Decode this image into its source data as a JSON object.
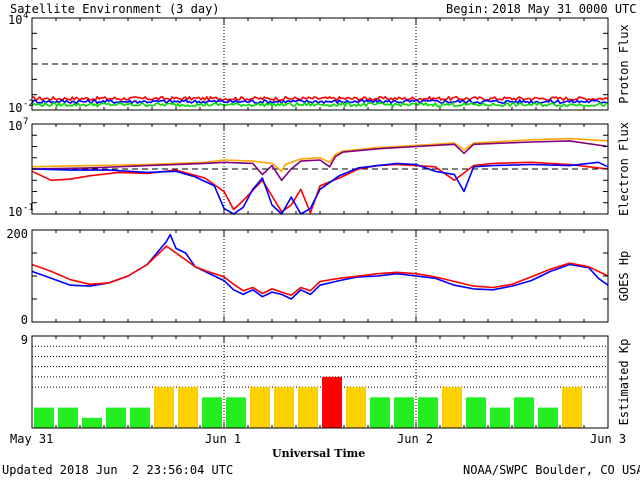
{
  "header": {
    "title": "Satellite Environment (3 day)",
    "begin_label": "Begin:",
    "begin_value": "2018 May 31 0000 UTC"
  },
  "footer": {
    "updated": "Updated 2018 Jun  2 23:56:04 UTC",
    "source": "NOAA/SWPC Boulder, CO USA",
    "xlabel": "Universal Time"
  },
  "x_axis": {
    "range": [
      0,
      3
    ],
    "ticks": [
      {
        "value": 0,
        "label": "May 31"
      },
      {
        "value": 1,
        "label": "Jun 1"
      },
      {
        "value": 2,
        "label": "Jun 2"
      },
      {
        "value": 3,
        "label": "Jun 3"
      }
    ]
  },
  "chart_data": [
    {
      "name": "proton",
      "type": "line",
      "ylabel": "Proton Flux",
      "yscale": "log",
      "ylim_exp": [
        -2,
        4
      ],
      "tick_base": "10",
      "tick_exps": [
        "4",
        "-2"
      ],
      "threshold_exp": 1,
      "series": [
        {
          "color": "#ff0000",
          "level_exp": -1.25,
          "noise": 0.12
        },
        {
          "color": "#0000ff",
          "level_exp": -1.45,
          "noise": 0.12
        },
        {
          "color": "#00dd00",
          "level_exp": -1.65,
          "noise": 0.12
        }
      ]
    },
    {
      "name": "electron",
      "type": "line",
      "ylabel": "Electron Flux",
      "yscale": "log",
      "ylim_exp": [
        -1,
        7
      ],
      "tick_base": "10",
      "tick_exps": [
        "7",
        "-1"
      ],
      "threshold_exp": 3,
      "series": [
        {
          "color": "#ffa500",
          "points": [
            [
              0,
              3.2
            ],
            [
              0.3,
              3.3
            ],
            [
              0.6,
              3.4
            ],
            [
              0.9,
              3.6
            ],
            [
              1.0,
              3.8
            ],
            [
              1.15,
              3.7
            ],
            [
              1.25,
              3.5
            ],
            [
              1.3,
              2.8
            ],
            [
              1.32,
              3.4
            ],
            [
              1.4,
              3.9
            ],
            [
              1.5,
              4.0
            ],
            [
              1.55,
              3.6
            ],
            [
              1.58,
              4.3
            ],
            [
              1.62,
              4.6
            ],
            [
              1.8,
              4.9
            ],
            [
              2.0,
              5.1
            ],
            [
              2.2,
              5.3
            ],
            [
              2.25,
              4.7
            ],
            [
              2.3,
              5.3
            ],
            [
              2.6,
              5.6
            ],
            [
              2.8,
              5.7
            ],
            [
              3.0,
              5.5
            ]
          ]
        },
        {
          "color": "#800080",
          "points": [
            [
              0,
              3.0
            ],
            [
              0.3,
              3.1
            ],
            [
              0.6,
              3.3
            ],
            [
              0.9,
              3.5
            ],
            [
              1.0,
              3.6
            ],
            [
              1.15,
              3.5
            ],
            [
              1.2,
              2.5
            ],
            [
              1.25,
              3.3
            ],
            [
              1.3,
              2.0
            ],
            [
              1.35,
              3.0
            ],
            [
              1.4,
              3.7
            ],
            [
              1.5,
              3.8
            ],
            [
              1.55,
              3.2
            ],
            [
              1.58,
              4.1
            ],
            [
              1.62,
              4.5
            ],
            [
              1.8,
              4.8
            ],
            [
              2.0,
              5.0
            ],
            [
              2.2,
              5.2
            ],
            [
              2.25,
              4.4
            ],
            [
              2.3,
              5.2
            ],
            [
              2.6,
              5.4
            ],
            [
              2.8,
              5.5
            ],
            [
              3.0,
              5.0
            ]
          ]
        },
        {
          "color": "#ff0000",
          "points": [
            [
              0,
              2.8
            ],
            [
              0.1,
              2.0
            ],
            [
              0.2,
              2.1
            ],
            [
              0.3,
              2.4
            ],
            [
              0.45,
              2.7
            ],
            [
              0.6,
              2.6
            ],
            [
              0.75,
              2.9
            ],
            [
              0.9,
              2.2
            ],
            [
              1.0,
              1.0
            ],
            [
              1.05,
              -0.6
            ],
            [
              1.1,
              0.2
            ],
            [
              1.2,
              2.0
            ],
            [
              1.25,
              0.6
            ],
            [
              1.3,
              -0.8
            ],
            [
              1.35,
              -0.2
            ],
            [
              1.4,
              1.2
            ],
            [
              1.45,
              -0.9
            ],
            [
              1.5,
              1.5
            ],
            [
              1.6,
              2.2
            ],
            [
              1.7,
              3.0
            ],
            [
              1.8,
              3.3
            ],
            [
              1.9,
              3.4
            ],
            [
              2.0,
              3.3
            ],
            [
              2.1,
              3.2
            ],
            [
              2.2,
              2.0
            ],
            [
              2.3,
              3.3
            ],
            [
              2.4,
              3.5
            ],
            [
              2.6,
              3.6
            ],
            [
              2.8,
              3.4
            ],
            [
              2.9,
              3.2
            ],
            [
              3.0,
              3.0
            ]
          ]
        },
        {
          "color": "#0000ff",
          "points": [
            [
              0,
              3.0
            ],
            [
              0.2,
              2.9
            ],
            [
              0.4,
              2.9
            ],
            [
              0.6,
              2.7
            ],
            [
              0.75,
              2.8
            ],
            [
              0.85,
              2.3
            ],
            [
              0.95,
              1.5
            ],
            [
              1.0,
              -0.5
            ],
            [
              1.05,
              -1.0
            ],
            [
              1.1,
              -0.4
            ],
            [
              1.15,
              1.2
            ],
            [
              1.2,
              2.2
            ],
            [
              1.25,
              -0.2
            ],
            [
              1.3,
              -1.0
            ],
            [
              1.35,
              0.5
            ],
            [
              1.4,
              -1.0
            ],
            [
              1.45,
              -0.5
            ],
            [
              1.5,
              1.2
            ],
            [
              1.6,
              2.4
            ],
            [
              1.7,
              3.1
            ],
            [
              1.8,
              3.3
            ],
            [
              1.9,
              3.5
            ],
            [
              2.0,
              3.4
            ],
            [
              2.1,
              2.8
            ],
            [
              2.2,
              2.5
            ],
            [
              2.25,
              1.0
            ],
            [
              2.3,
              3.2
            ],
            [
              2.4,
              3.3
            ],
            [
              2.6,
              3.4
            ],
            [
              2.8,
              3.3
            ],
            [
              2.95,
              3.6
            ],
            [
              3.0,
              3.2
            ]
          ]
        }
      ]
    },
    {
      "name": "goes_hp",
      "type": "line",
      "ylabel": "GOES Hp",
      "ylim": [
        0,
        200
      ],
      "ticks": [
        {
          "value": 200,
          "label": "200"
        },
        {
          "value": 0,
          "label": "0"
        }
      ],
      "series": [
        {
          "color": "#0000ff",
          "points": [
            [
              0,
              110
            ],
            [
              0.1,
              95
            ],
            [
              0.2,
              80
            ],
            [
              0.3,
              78
            ],
            [
              0.4,
              85
            ],
            [
              0.5,
              100
            ],
            [
              0.6,
              125
            ],
            [
              0.65,
              150
            ],
            [
              0.7,
              175
            ],
            [
              0.72,
              190
            ],
            [
              0.75,
              160
            ],
            [
              0.8,
              150
            ],
            [
              0.85,
              120
            ],
            [
              0.9,
              110
            ],
            [
              1.0,
              90
            ],
            [
              1.05,
              70
            ],
            [
              1.1,
              60
            ],
            [
              1.15,
              70
            ],
            [
              1.2,
              55
            ],
            [
              1.25,
              65
            ],
            [
              1.3,
              60
            ],
            [
              1.35,
              50
            ],
            [
              1.4,
              70
            ],
            [
              1.45,
              60
            ],
            [
              1.5,
              80
            ],
            [
              1.6,
              90
            ],
            [
              1.7,
              98
            ],
            [
              1.8,
              100
            ],
            [
              1.9,
              105
            ],
            [
              2.0,
              100
            ],
            [
              2.1,
              95
            ],
            [
              2.2,
              80
            ],
            [
              2.3,
              72
            ],
            [
              2.4,
              70
            ],
            [
              2.5,
              78
            ],
            [
              2.6,
              90
            ],
            [
              2.7,
              110
            ],
            [
              2.8,
              125
            ],
            [
              2.9,
              118
            ],
            [
              2.95,
              95
            ],
            [
              3.0,
              80
            ]
          ]
        },
        {
          "color": "#ff0000",
          "points": [
            [
              0,
              125
            ],
            [
              0.1,
              110
            ],
            [
              0.2,
              92
            ],
            [
              0.3,
              82
            ],
            [
              0.4,
              85
            ],
            [
              0.5,
              100
            ],
            [
              0.6,
              125
            ],
            [
              0.65,
              145
            ],
            [
              0.7,
              165
            ],
            [
              0.75,
              150
            ],
            [
              0.8,
              135
            ],
            [
              0.85,
              120
            ],
            [
              0.9,
              112
            ],
            [
              1.0,
              98
            ],
            [
              1.05,
              82
            ],
            [
              1.1,
              68
            ],
            [
              1.15,
              75
            ],
            [
              1.2,
              62
            ],
            [
              1.25,
              72
            ],
            [
              1.3,
              65
            ],
            [
              1.35,
              58
            ],
            [
              1.4,
              75
            ],
            [
              1.45,
              68
            ],
            [
              1.5,
              88
            ],
            [
              1.6,
              95
            ],
            [
              1.7,
              100
            ],
            [
              1.8,
              105
            ],
            [
              1.9,
              108
            ],
            [
              2.0,
              105
            ],
            [
              2.1,
              98
            ],
            [
              2.2,
              88
            ],
            [
              2.3,
              78
            ],
            [
              2.4,
              75
            ],
            [
              2.5,
              82
            ],
            [
              2.6,
              98
            ],
            [
              2.7,
              115
            ],
            [
              2.8,
              128
            ],
            [
              2.9,
              120
            ],
            [
              3.0,
              100
            ]
          ]
        }
      ]
    },
    {
      "name": "kp",
      "type": "bar",
      "ylabel": "Estimated Kp",
      "ylim": [
        0,
        9
      ],
      "ticks": [
        {
          "value": 9,
          "label": "9"
        }
      ],
      "gridlines": [
        4,
        5,
        6,
        7,
        8,
        9
      ],
      "bar_hours": 3,
      "values": [
        2,
        2,
        1,
        2,
        2,
        4,
        4,
        3,
        3,
        4,
        4,
        4,
        5,
        4,
        3,
        3,
        3,
        4,
        3,
        2,
        3,
        2,
        4
      ],
      "colors": {
        "quiet": "#22ee22",
        "active": "#ffd000",
        "storm": "#ff0000"
      }
    }
  ]
}
